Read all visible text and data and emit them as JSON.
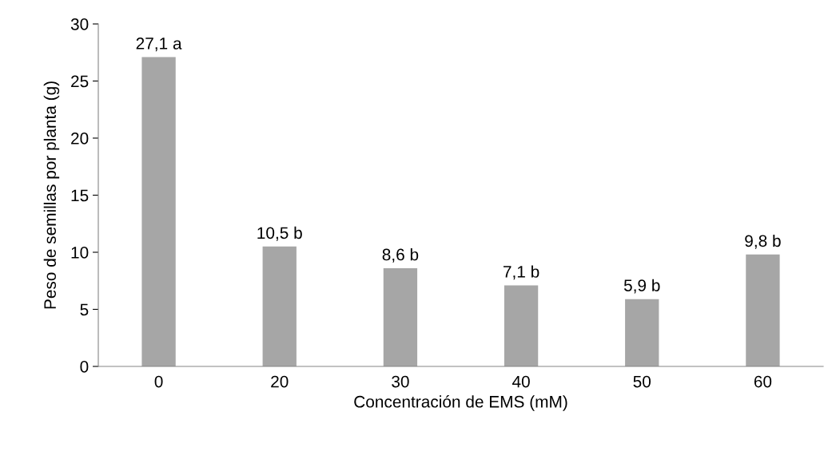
{
  "chart_data": {
    "type": "bar",
    "xlabel": "Concentración de EMS (mM)",
    "ylabel": "Peso de semillas por planta (g)",
    "categories": [
      "0",
      "20",
      "30",
      "40",
      "50",
      "60"
    ],
    "values": [
      27.1,
      10.5,
      8.6,
      7.1,
      5.9,
      9.8
    ],
    "value_labels": [
      "27,1 a",
      "10,5 b",
      "8,6 b",
      "7,1 b",
      "5,9 b",
      "9,8 b"
    ],
    "color": "#a6a6a6",
    "ylim": [
      0,
      30
    ],
    "yticks": [
      0,
      5,
      10,
      15,
      20,
      25,
      30
    ],
    "grid": false
  }
}
